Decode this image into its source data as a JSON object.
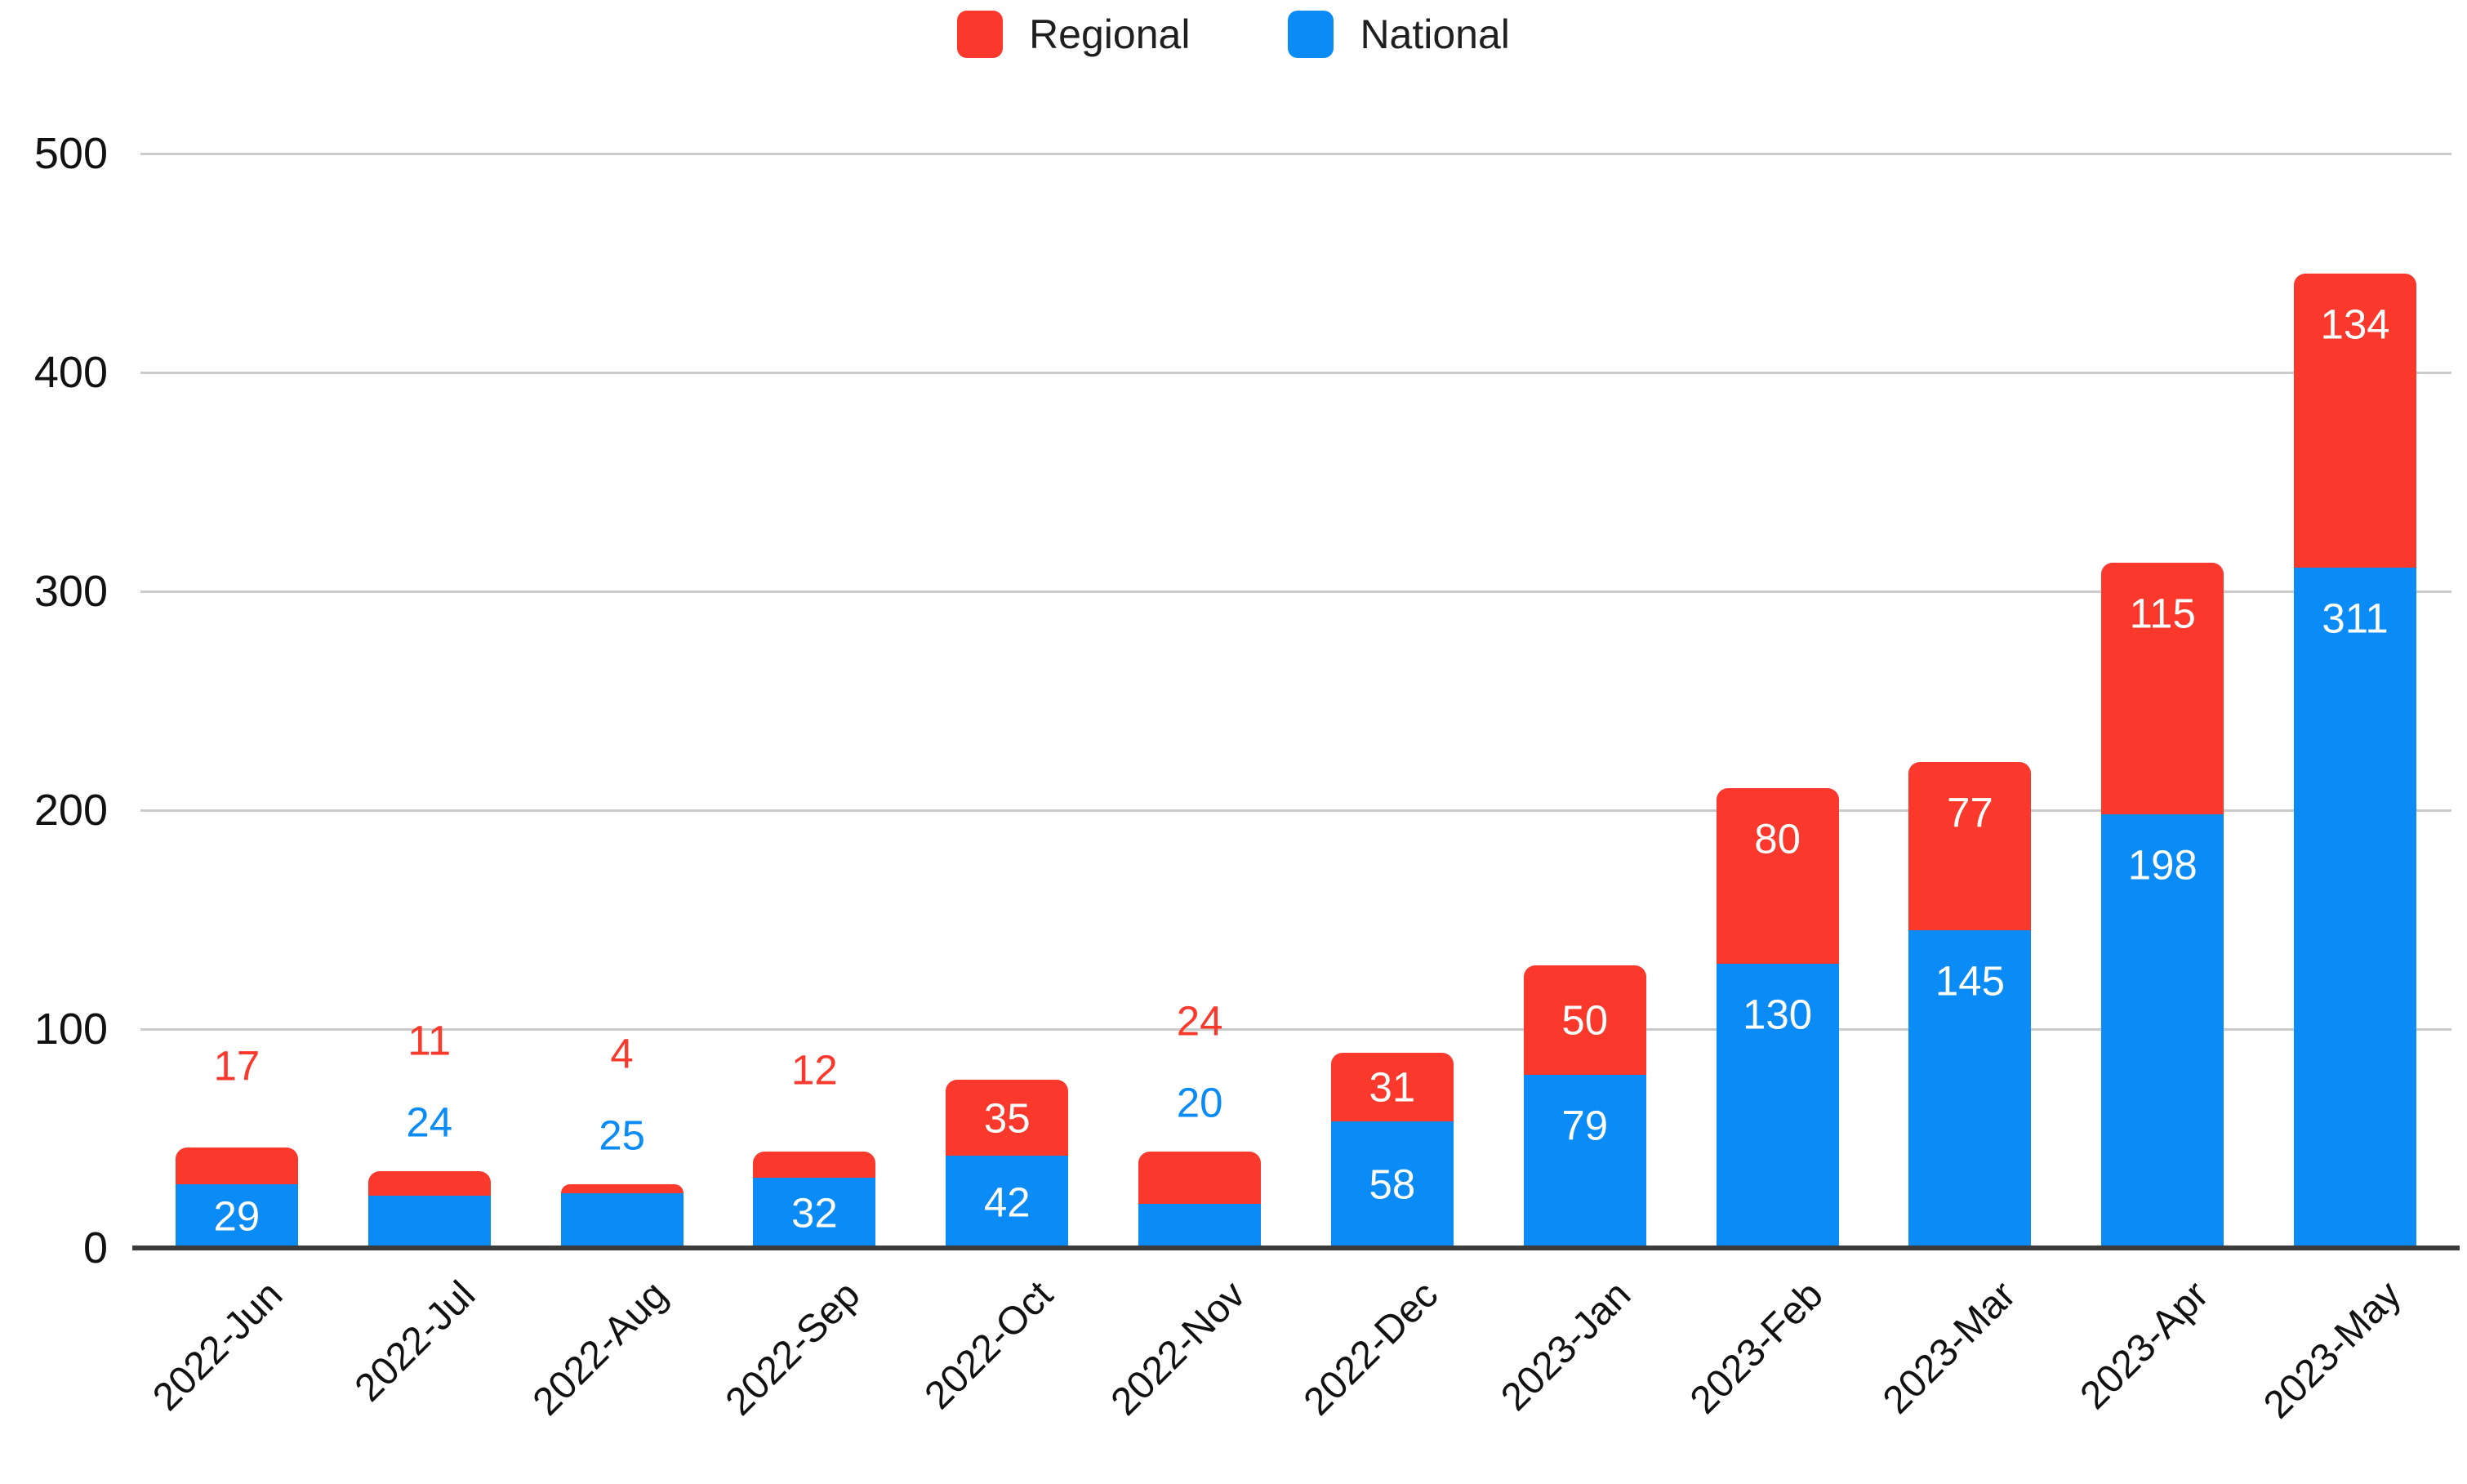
{
  "chart_data": {
    "type": "bar",
    "stacked": true,
    "title": "",
    "xlabel": "",
    "ylabel": "",
    "categories": [
      "2022-Jun",
      "2022-Jul",
      "2022-Aug",
      "2022-Sep",
      "2022-Oct",
      "2022-Nov",
      "2022-Dec",
      "2023-Jan",
      "2023-Feb",
      "2023-Mar",
      "2023-Apr",
      "2023-May"
    ],
    "series": [
      {
        "name": "National",
        "color": "#0a8bf5",
        "values": [
          29,
          24,
          25,
          32,
          42,
          20,
          58,
          79,
          130,
          145,
          198,
          311
        ]
      },
      {
        "name": "Regional",
        "color": "#fa392c",
        "values": [
          17,
          11,
          4,
          12,
          35,
          24,
          31,
          50,
          80,
          77,
          115,
          134
        ]
      }
    ],
    "legend": {
      "position": "top",
      "entries": [
        "Regional",
        "National"
      ]
    },
    "ylim": [
      0,
      500
    ],
    "yticks": [
      0,
      100,
      200,
      300,
      400,
      500
    ],
    "grid": true,
    "colors": {
      "gridline": "#cacaca",
      "axis_line": "#3b3b3b",
      "axis_text": "#111111",
      "inside_label_text": "#ffffff",
      "legend_text": "#1f1f1f"
    }
  }
}
